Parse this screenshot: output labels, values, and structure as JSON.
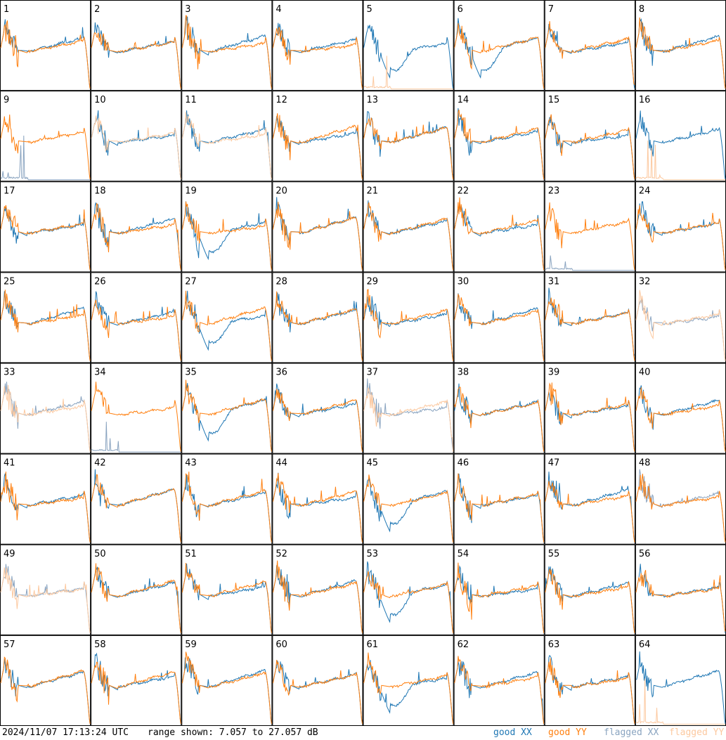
{
  "timestamp": "2024/11/07 17:13:24 UTC",
  "range_text": "range shown: 7.057 to 27.057 dB",
  "legend": [
    {
      "label": "good XX",
      "color": "#1f77b4"
    },
    {
      "label": "good YY",
      "color": "#ff7f0e"
    },
    {
      "label": "flagged XX",
      "color": "#8aa4c0"
    },
    {
      "label": "flagged YY",
      "color": "#fcc9a0"
    }
  ],
  "chart_data": {
    "type": "line",
    "subplots": 64,
    "layout": "8x8",
    "ylim": [
      7.057,
      27.057
    ],
    "yunit": "dB",
    "tile_labels": [
      "1",
      "2",
      "3",
      "4",
      "5",
      "6",
      "7",
      "8",
      "9",
      "10",
      "11",
      "12",
      "13",
      "14",
      "15",
      "16",
      "17",
      "18",
      "19",
      "20",
      "21",
      "22",
      "23",
      "24",
      "25",
      "26",
      "27",
      "28",
      "29",
      "30",
      "31",
      "32",
      "33",
      "34",
      "35",
      "36",
      "37",
      "38",
      "39",
      "40",
      "41",
      "42",
      "43",
      "44",
      "45",
      "46",
      "47",
      "48",
      "49",
      "50",
      "51",
      "52",
      "53",
      "54",
      "55",
      "56",
      "57",
      "58",
      "59",
      "60",
      "61",
      "62",
      "63",
      "64"
    ],
    "status": {
      "both_good": [
        1,
        2,
        3,
        4,
        7,
        8,
        12,
        13,
        14,
        15,
        17,
        18,
        19,
        20,
        21,
        22,
        24,
        25,
        26,
        27,
        28,
        29,
        30,
        31,
        35,
        36,
        38,
        39,
        40,
        41,
        42,
        43,
        44,
        45,
        46,
        47,
        50,
        51,
        52,
        53,
        54,
        55,
        56,
        57,
        58,
        59,
        60,
        61,
        62,
        63
      ],
      "xx_only_good": [
        5,
        16,
        64
      ],
      "yy_only_good": [
        9,
        23,
        34
      ],
      "xx_good_yy_flagged": [
        10,
        11
      ],
      "yy_good_xx_flagged": [
        48
      ],
      "both_flagged": [
        32,
        33,
        37,
        49
      ]
    }
  }
}
